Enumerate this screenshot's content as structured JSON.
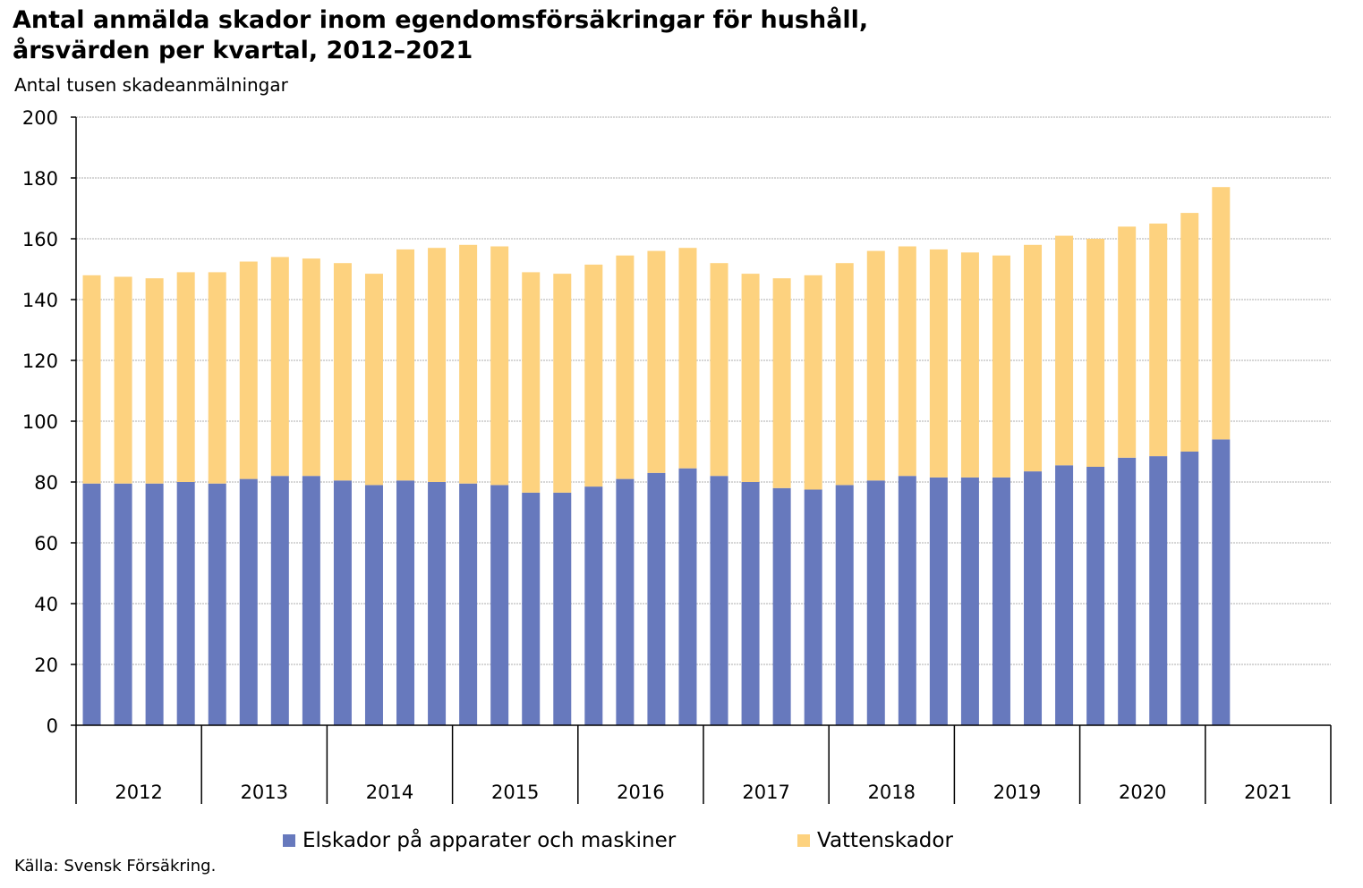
{
  "chart_data": {
    "type": "bar",
    "stacked": true,
    "title_line1": "Antal anmälda skador inom egendomsförsäkringar för hushåll,",
    "title_line2": "årsvärden per kvartal, 2012–2021",
    "ylabel": "Antal tusen skadeanmälningar",
    "source": "Källa: Svensk Försäkring.",
    "ylim": [
      0,
      200
    ],
    "yticks": [
      "0",
      "20",
      "40",
      "60",
      "80",
      "100",
      "120",
      "140",
      "160",
      "180",
      "200"
    ],
    "years": [
      "2012",
      "2013",
      "2014",
      "2015",
      "2016",
      "2017",
      "2018",
      "2019",
      "2020",
      "2021"
    ],
    "quarters_per_year": 4,
    "grid": true,
    "legend_position": "bottom",
    "series": [
      {
        "name": "Elskador på apparater och maskiner",
        "color": "#6779bd",
        "values": [
          79.5,
          79.5,
          79.5,
          80,
          79.5,
          81,
          82,
          82,
          80.5,
          79,
          80.5,
          80,
          79.5,
          79,
          76.5,
          76.5,
          78.5,
          81,
          83,
          84.5,
          82,
          80,
          78,
          77.5,
          79,
          80.5,
          82,
          81.5,
          81.5,
          81.5,
          83.5,
          85.5,
          85,
          88,
          88.5,
          90,
          94
        ]
      },
      {
        "name": "Vattenskador",
        "color": "#fdd27f",
        "values": [
          68.5,
          68,
          67.5,
          69,
          69.5,
          71.5,
          72,
          71.5,
          71.5,
          69.5,
          76,
          77,
          78.5,
          78.5,
          72.5,
          72,
          73,
          73.5,
          73,
          72.5,
          70,
          68.5,
          69,
          70.5,
          73,
          75.5,
          75.5,
          75,
          74,
          73,
          74.5,
          75.5,
          75,
          76,
          76.5,
          78.5,
          83
        ]
      }
    ]
  }
}
